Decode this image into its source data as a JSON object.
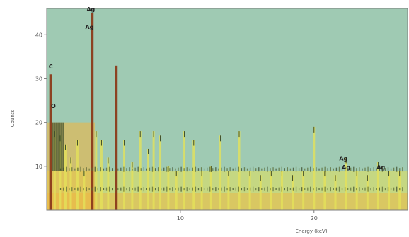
{
  "chart_data": {
    "type": "bar",
    "title": "",
    "xlabel": "Energy (keV)",
    "ylabel": "Counts",
    "xlim": [
      0,
      27
    ],
    "ylim": [
      0,
      46
    ],
    "x_ticks": [
      "10",
      "20"
    ],
    "y_ticks": [
      "10",
      "20",
      "30",
      "40"
    ],
    "grid": false,
    "colors": {
      "background": "#9fcab3",
      "low_band": "#f2b43c",
      "mid_band": "#e4e15a",
      "dark_line": "#3b4a2a",
      "peak_line": "#8b3a1a",
      "frame": "#7d7d7d"
    },
    "series": [
      {
        "x": [
          0.3,
          0.6,
          1.0,
          1.4,
          1.8,
          2.3,
          2.8,
          3.4,
          3.7,
          4.1,
          4.6,
          5.2,
          5.8,
          6.4,
          7.0,
          7.6,
          8.0,
          8.5,
          9.1,
          9.7,
          10.3,
          11.0,
          11.6,
          12.3,
          13.0,
          13.6,
          14.4,
          15.2,
          16.0,
          16.8,
          17.6,
          18.4,
          19.2,
          20.0,
          20.8,
          21.6,
          22.4,
          23.2,
          24.0,
          24.8,
          25.6,
          26.4
        ],
        "y": [
          31,
          18,
          17,
          15,
          12,
          16,
          9,
          45,
          18,
          16,
          12,
          33,
          16,
          11,
          18,
          14,
          18,
          17,
          10,
          9,
          18,
          16,
          9,
          10,
          17,
          9,
          18,
          9,
          8,
          9,
          9,
          8,
          9,
          19,
          9,
          8,
          12,
          9,
          8,
          11,
          9,
          9
        ]
      }
    ],
    "annotations": [
      {
        "text": "C",
        "x": 0.3,
        "y": 33
      },
      {
        "text": "O",
        "x": 0.5,
        "y": 24
      },
      {
        "text": "Ag",
        "x": 3.3,
        "y": 46
      },
      {
        "text": "Ag",
        "x": 3.2,
        "y": 42
      },
      {
        "text": "Ag",
        "x": 22.2,
        "y": 12
      },
      {
        "text": "Ag",
        "x": 22.4,
        "y": 10
      },
      {
        "text": "Ag",
        "x": 25.0,
        "y": 10
      }
    ]
  }
}
